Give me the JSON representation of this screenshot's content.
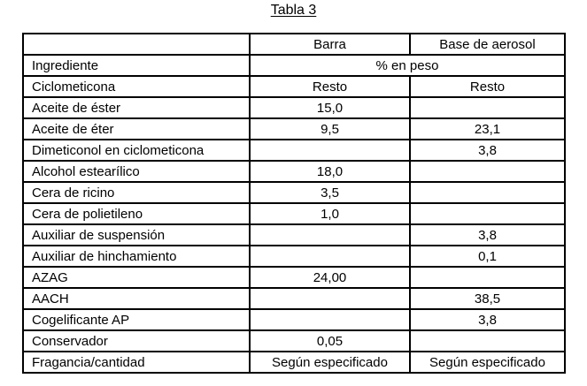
{
  "page_title": "Tabla 3",
  "table": {
    "header": {
      "col_ingredient": "",
      "col_barra": "Barra",
      "col_aerosol": "Base de aerosol"
    },
    "subheader": {
      "label": "Ingrediente",
      "unit": "% en peso"
    },
    "rows": [
      {
        "ingredient": "Ciclometicona",
        "barra": "Resto",
        "aerosol": "Resto"
      },
      {
        "ingredient": "Aceite de éster",
        "barra": "15,0",
        "aerosol": ""
      },
      {
        "ingredient": "Aceite de éter",
        "barra": "9,5",
        "aerosol": "23,1"
      },
      {
        "ingredient": "Dimeticonol en ciclometicona",
        "barra": "",
        "aerosol": "3,8"
      },
      {
        "ingredient": "Alcohol estearílico",
        "barra": "18,0",
        "aerosol": ""
      },
      {
        "ingredient": "Cera de ricino",
        "barra": "3,5",
        "aerosol": ""
      },
      {
        "ingredient": "Cera de polietileno",
        "barra": "1,0",
        "aerosol": ""
      },
      {
        "ingredient": "Auxiliar de suspensión",
        "barra": "",
        "aerosol": "3,8"
      },
      {
        "ingredient": "Auxiliar de hinchamiento",
        "barra": "",
        "aerosol": "0,1"
      },
      {
        "ingredient": "AZAG",
        "barra": "24,00",
        "aerosol": ""
      },
      {
        "ingredient": "AACH",
        "barra": "",
        "aerosol": "38,5"
      },
      {
        "ingredient": "Cogelificante AP",
        "barra": "",
        "aerosol": "3,8"
      },
      {
        "ingredient": "Conservador",
        "barra": "0,05",
        "aerosol": ""
      },
      {
        "ingredient": "Fragancia/cantidad",
        "barra": "Según especificado",
        "aerosol": "Según especificado"
      }
    ]
  }
}
